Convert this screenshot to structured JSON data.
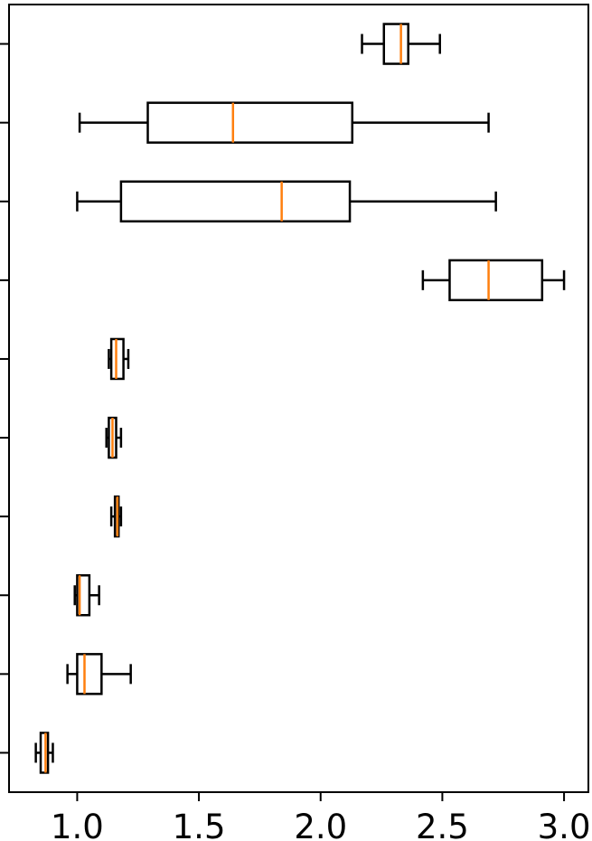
{
  "chart_data": {
    "type": "boxplot",
    "orientation": "horizontal",
    "title": "",
    "xlabel": "",
    "ylabel": "",
    "xlim": [
      0.72,
      3.1
    ],
    "xticks": [
      1.0,
      1.5,
      2.0,
      2.5,
      3.0
    ],
    "xtick_labels": [
      "1.0",
      "1.5",
      "2.0",
      "2.5",
      "3.0"
    ],
    "grid": false,
    "colors": {
      "box": "#000000",
      "median": "#ff7f0e"
    },
    "boxes": [
      {
        "whisker_low": 0.83,
        "q1": 0.85,
        "median": 0.87,
        "q3": 0.88,
        "whisker_high": 0.9
      },
      {
        "whisker_low": 0.96,
        "q1": 1.0,
        "median": 1.03,
        "q3": 1.1,
        "whisker_high": 1.22
      },
      {
        "whisker_low": 0.99,
        "q1": 1.0,
        "median": 1.01,
        "q3": 1.05,
        "whisker_high": 1.09
      },
      {
        "whisker_low": 1.14,
        "q1": 1.155,
        "median": 1.165,
        "q3": 1.17,
        "whisker_high": 1.18
      },
      {
        "whisker_low": 1.12,
        "q1": 1.13,
        "median": 1.145,
        "q3": 1.16,
        "whisker_high": 1.18
      },
      {
        "whisker_low": 1.13,
        "q1": 1.14,
        "median": 1.16,
        "q3": 1.19,
        "whisker_high": 1.21
      },
      {
        "whisker_low": 2.42,
        "q1": 2.53,
        "median": 2.69,
        "q3": 2.91,
        "whisker_high": 3.0
      },
      {
        "whisker_low": 1.0,
        "q1": 1.18,
        "median": 1.84,
        "q3": 2.12,
        "whisker_high": 2.72
      },
      {
        "whisker_low": 1.01,
        "q1": 1.29,
        "median": 1.64,
        "q3": 2.13,
        "whisker_high": 2.69
      },
      {
        "whisker_low": 2.17,
        "q1": 2.26,
        "median": 2.33,
        "q3": 2.36,
        "whisker_high": 2.49
      }
    ]
  }
}
